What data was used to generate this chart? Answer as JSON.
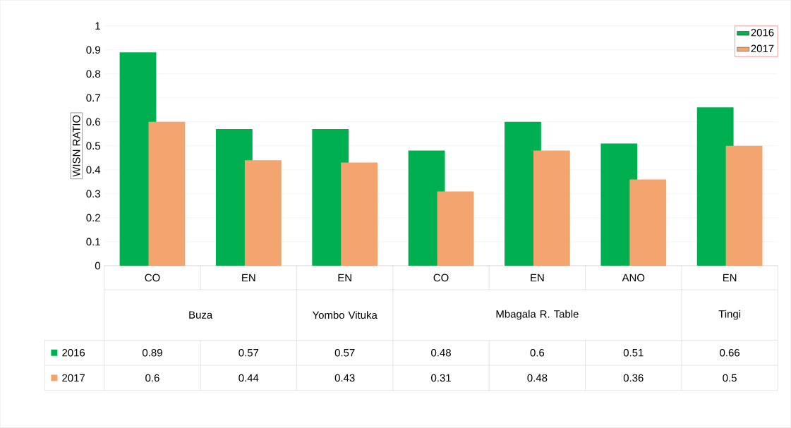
{
  "chart_data": {
    "type": "bar",
    "ylabel": "WISN RATIO",
    "categories": [
      "CO",
      "EN",
      "EN",
      "CO",
      "EN",
      "ANO",
      "EN"
    ],
    "series": [
      {
        "name": "2016",
        "color": "#00b050",
        "values": [
          0.89,
          0.57,
          0.57,
          0.48,
          0.6,
          0.51,
          0.66
        ]
      },
      {
        "name": "2017",
        "color": "#f4a46e",
        "values": [
          0.6,
          0.44,
          0.43,
          0.31,
          0.48,
          0.36,
          0.5
        ]
      }
    ],
    "annotations": [
      "Buza",
      "Yombo Vituka",
      "Mbagala R. Table",
      "Tingi"
    ],
    "ylim": [
      0,
      1
    ],
    "yticks": [
      0,
      0.1,
      0.2,
      0.3,
      0.4,
      0.5,
      0.6,
      0.7,
      0.8,
      0.9,
      1
    ],
    "grid": "y",
    "legend": "top right",
    "data_labels": true
  }
}
